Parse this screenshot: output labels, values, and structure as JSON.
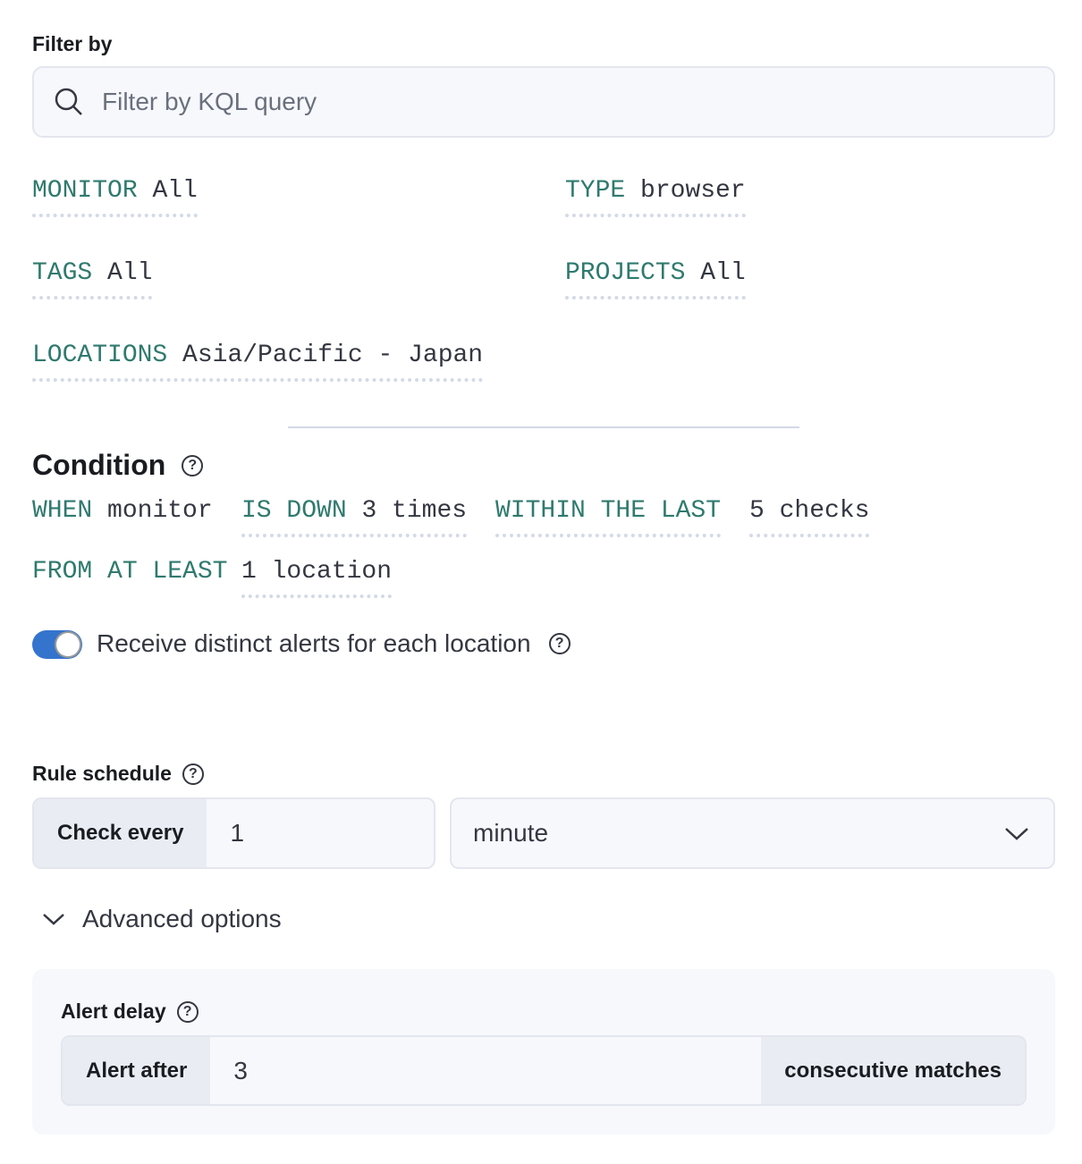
{
  "filter": {
    "label": "Filter by",
    "placeholder": "Filter by KQL query",
    "icon": "search-icon"
  },
  "expressions": {
    "monitor": {
      "key": "MONITOR",
      "value": "All"
    },
    "type": {
      "key": "TYPE",
      "value": "browser"
    },
    "tags": {
      "key": "TAGS",
      "value": "All"
    },
    "projects": {
      "key": "PROJECTS",
      "value": "All"
    },
    "locations": {
      "key": "LOCATIONS",
      "value": "Asia/Pacific - Japan"
    }
  },
  "condition": {
    "title": "Condition",
    "when": "WHEN",
    "when_value": "monitor",
    "is_down": "IS DOWN",
    "is_down_value": "3 times",
    "within": "WITHIN THE LAST",
    "within_value": "5 checks",
    "from": "FROM AT LEAST",
    "from_value": "1 location",
    "toggle_label": "Receive distinct alerts for each location",
    "toggle_on": true
  },
  "schedule": {
    "title": "Rule schedule",
    "prepend": "Check every",
    "value": "1",
    "unit": "minute"
  },
  "advanced": {
    "label": "Advanced options",
    "alert_delay": "Alert delay",
    "prepend": "Alert after",
    "value": "3",
    "append": "consecutive matches"
  },
  "colors": {
    "keyword": "#2f7a6e",
    "toggle": "#3574cd"
  }
}
